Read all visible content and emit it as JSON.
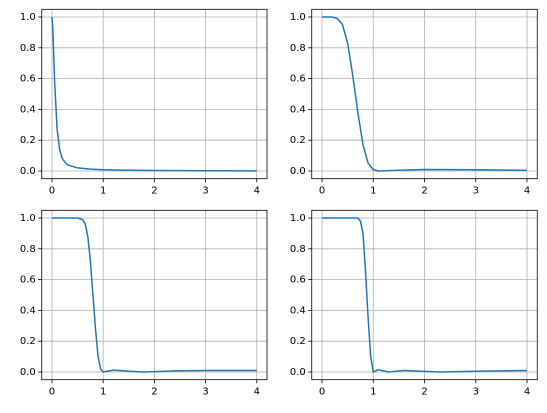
{
  "chart_data": [
    {
      "type": "line",
      "grid": true,
      "x": [
        0,
        0.02,
        0.05,
        0.1,
        0.15,
        0.2,
        0.3,
        0.5,
        0.75,
        1,
        1.5,
        2,
        3,
        4
      ],
      "series": [
        {
          "color": "#1f77b4",
          "values": [
            1,
            0.9,
            0.59,
            0.27,
            0.14,
            0.08,
            0.04,
            0.02,
            0.012,
            0.008,
            0.005,
            0.003,
            0.002,
            0.001
          ]
        }
      ],
      "xlim": [
        -0.2,
        4.2
      ],
      "ylim": [
        -0.05,
        1.05
      ],
      "xticks": [
        0,
        1,
        2,
        3,
        4
      ],
      "yticks": [
        {
          "value": 0,
          "label": "0.0"
        },
        0.2,
        0.4,
        0.6,
        0.8,
        {
          "value": 1,
          "label": "1.0"
        }
      ]
    },
    {
      "type": "line",
      "grid": true,
      "x": [
        0,
        0.2,
        0.3,
        0.4,
        0.5,
        0.6,
        0.7,
        0.8,
        0.9,
        1.0,
        1.1,
        1.5,
        2,
        3,
        4
      ],
      "series": [
        {
          "color": "#1f77b4",
          "values": [
            1,
            1,
            0.99,
            0.95,
            0.83,
            0.62,
            0.38,
            0.17,
            0.05,
            0.01,
            0.0,
            0.005,
            0.01,
            0.008,
            0.004
          ]
        }
      ],
      "xlim": [
        -0.2,
        4.2
      ],
      "ylim": [
        -0.05,
        1.05
      ],
      "xticks": [
        0,
        1,
        2,
        3,
        4
      ],
      "yticks": [
        {
          "value": 0,
          "label": "0.0"
        },
        0.2,
        0.4,
        0.6,
        0.8,
        {
          "value": 1,
          "label": "1.0"
        }
      ]
    },
    {
      "type": "line",
      "grid": true,
      "x": [
        0,
        0.5,
        0.6,
        0.65,
        0.7,
        0.75,
        0.8,
        0.85,
        0.9,
        0.95,
        1.0,
        1.2,
        1.5,
        1.8,
        2.5,
        3,
        4
      ],
      "series": [
        {
          "color": "#1f77b4",
          "values": [
            1,
            1,
            0.99,
            0.96,
            0.88,
            0.72,
            0.5,
            0.28,
            0.1,
            0.02,
            0.0,
            0.012,
            0.005,
            0.0,
            0.008,
            0.01,
            0.01
          ]
        }
      ],
      "xlim": [
        -0.2,
        4.2
      ],
      "ylim": [
        -0.05,
        1.05
      ],
      "xticks": [
        0,
        1,
        2,
        3,
        4
      ],
      "yticks": [
        {
          "value": 0,
          "label": "0.0"
        },
        0.2,
        0.4,
        0.6,
        0.8,
        {
          "value": 1,
          "label": "1.0"
        }
      ]
    },
    {
      "type": "line",
      "grid": true,
      "x": [
        0,
        0.7,
        0.75,
        0.8,
        0.85,
        0.9,
        0.95,
        1.0,
        1.1,
        1.3,
        1.6,
        2.3,
        3,
        4
      ],
      "series": [
        {
          "color": "#1f77b4",
          "values": [
            1,
            1,
            0.98,
            0.9,
            0.65,
            0.35,
            0.1,
            0.0,
            0.015,
            0.0,
            0.01,
            0.0,
            0.005,
            0.01
          ]
        }
      ],
      "xlim": [
        -0.2,
        4.2
      ],
      "ylim": [
        -0.05,
        1.05
      ],
      "xticks": [
        0,
        1,
        2,
        3,
        4
      ],
      "yticks": [
        {
          "value": 0,
          "label": "0.0"
        },
        0.2,
        0.4,
        0.6,
        0.8,
        {
          "value": 1,
          "label": "1.0"
        }
      ]
    }
  ]
}
